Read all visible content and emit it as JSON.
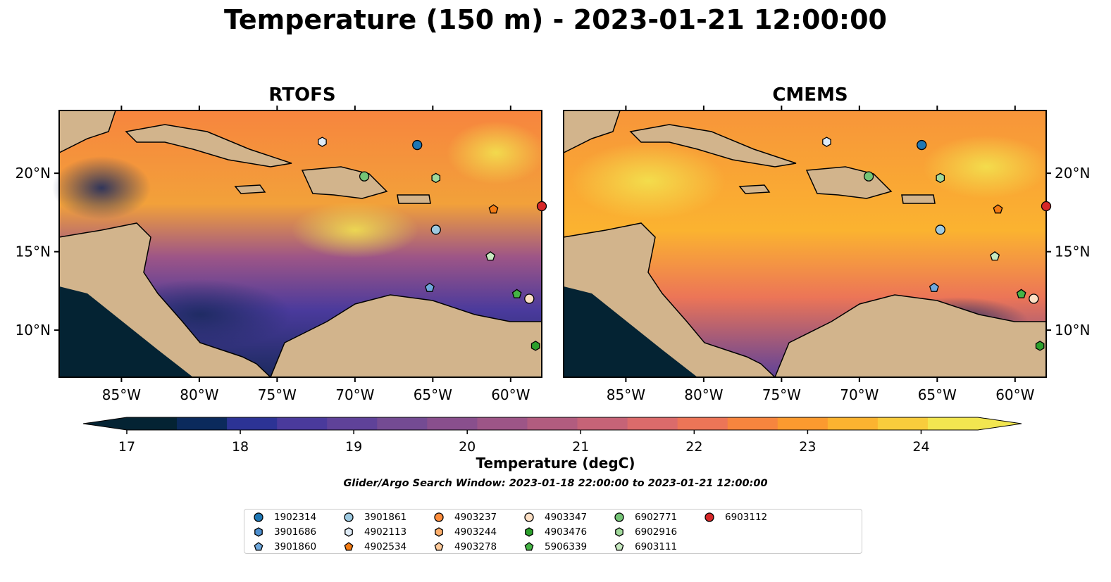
{
  "title": "Temperature (150 m) - 2023-01-21 12:00:00",
  "panels": [
    {
      "id": "rtofs",
      "title": "RTOFS"
    },
    {
      "id": "cmems",
      "title": "CMEMS"
    }
  ],
  "axes": {
    "lon_ticks": [
      "85°W",
      "80°W",
      "75°W",
      "70°W",
      "65°W",
      "60°W"
    ],
    "lat_ticks": [
      "20°N",
      "15°N",
      "10°N"
    ],
    "lon_range": [
      -89,
      -58
    ],
    "lat_range": [
      7,
      24
    ]
  },
  "colorbar": {
    "title": "Temperature (degC)",
    "ticks": [
      "17",
      "18",
      "19",
      "20",
      "21",
      "22",
      "23",
      "24"
    ],
    "range": [
      17,
      24.5
    ],
    "colors": [
      "#042333",
      "#0b2a5c",
      "#2c3395",
      "#4a3a9c",
      "#5f4299",
      "#744b93",
      "#894f8d",
      "#9d5587",
      "#b25c7f",
      "#c66377",
      "#db6b6b",
      "#ec7557",
      "#f7853e",
      "#fb9a2f",
      "#fbb330",
      "#f8cc3c",
      "#f2e650"
    ],
    "extend": "both"
  },
  "search_window": "Glider/Argo Search Window: 2023-01-18 22:00:00 to 2023-01-21 12:00:00",
  "map_colors": {
    "land": "#d2b48c",
    "shelf": "#9bb8e0",
    "coast": "#000000"
  },
  "floats": [
    {
      "id": "1902314",
      "marker": "circle",
      "color": "#1f77b4",
      "lon": -66.0,
      "lat": 21.8
    },
    {
      "id": "3901686",
      "marker": "hexagon",
      "color": "#4e8fcf",
      "lon": null,
      "lat": null
    },
    {
      "id": "3901860",
      "marker": "pentagon",
      "color": "#6fa8dc",
      "lon": -65.2,
      "lat": 12.7
    },
    {
      "id": "3901861",
      "marker": "circle",
      "color": "#9ecae1",
      "lon": -64.8,
      "lat": 16.4
    },
    {
      "id": "4902113",
      "marker": "hexagon",
      "color": "#deebf7",
      "lon": -72.1,
      "lat": 22.0
    },
    {
      "id": "4902534",
      "marker": "pentagon",
      "color": "#f37b13",
      "lon": -61.1,
      "lat": 17.7
    },
    {
      "id": "4903237",
      "marker": "circle",
      "color": "#fd8d3c",
      "lon": null,
      "lat": null
    },
    {
      "id": "4903244",
      "marker": "hexagon",
      "color": "#fdae6b",
      "lon": null,
      "lat": null
    },
    {
      "id": "4903278",
      "marker": "pentagon",
      "color": "#fdc999",
      "lon": null,
      "lat": null
    },
    {
      "id": "4903347",
      "marker": "circle",
      "color": "#fde0c5",
      "lon": -58.8,
      "lat": 12.0
    },
    {
      "id": "4903476",
      "marker": "hexagon",
      "color": "#2ca02c",
      "lon": -58.4,
      "lat": 9.0
    },
    {
      "id": "5906339",
      "marker": "pentagon",
      "color": "#45b445",
      "lon": -59.6,
      "lat": 12.3
    },
    {
      "id": "6902771",
      "marker": "circle",
      "color": "#74c476",
      "lon": -69.4,
      "lat": 19.8
    },
    {
      "id": "6902916",
      "marker": "hexagon",
      "color": "#a1d99b",
      "lon": -64.8,
      "lat": 19.7
    },
    {
      "id": "6903111",
      "marker": "pentagon",
      "color": "#c7e9c0",
      "lon": -61.3,
      "lat": 14.7
    },
    {
      "id": "6903112",
      "marker": "circle",
      "color": "#d62728",
      "lon": -57.9,
      "lat": 17.9
    }
  ]
}
